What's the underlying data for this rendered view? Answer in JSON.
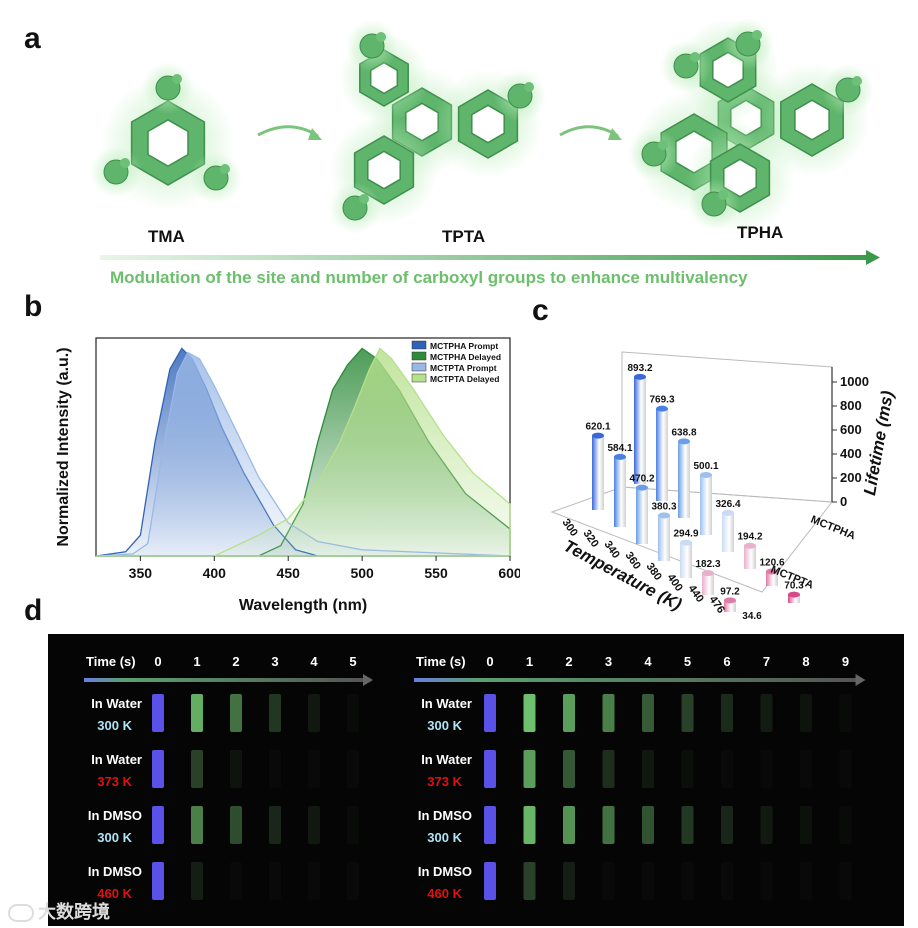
{
  "panels": {
    "a": "a",
    "b": "b",
    "c": "c",
    "d": "d"
  },
  "panel_a": {
    "molecules": [
      "TMA",
      "TPTA",
      "TPHA"
    ],
    "banner": "Modulation of the site and number of carboxyl groups to enhance multivalency",
    "colors": {
      "molecule": "#5bb36a",
      "glow": "#a8e6a8",
      "arrow": "#4caf50"
    }
  },
  "chart_data": [
    {
      "type": "area",
      "xlabel": "Wavelength (nm)",
      "ylabel": "Normalized Intensity (a.u.)",
      "xlim": [
        320,
        600
      ],
      "ylim": [
        0,
        1.05
      ],
      "xticks": [
        "350",
        "400",
        "450",
        "500",
        "550",
        "600"
      ],
      "legend_position": "top-right",
      "series": [
        {
          "name": "MCTPHA  Prompt",
          "color": "#2f63b8",
          "peak": 378,
          "points": [
            [
              320,
              0
            ],
            [
              340,
              0.02
            ],
            [
              350,
              0.1
            ],
            [
              360,
              0.55
            ],
            [
              370,
              0.9
            ],
            [
              378,
              1.0
            ],
            [
              385,
              0.95
            ],
            [
              395,
              0.8
            ],
            [
              405,
              0.62
            ],
            [
              420,
              0.4
            ],
            [
              440,
              0.15
            ],
            [
              455,
              0.03
            ],
            [
              470,
              0
            ],
            [
              600,
              0
            ]
          ]
        },
        {
          "name": "MCTPHA  Delayed",
          "color": "#2e8b3a",
          "peak": 500,
          "points": [
            [
              320,
              0
            ],
            [
              430,
              0
            ],
            [
              445,
              0.05
            ],
            [
              460,
              0.25
            ],
            [
              470,
              0.55
            ],
            [
              480,
              0.8
            ],
            [
              490,
              0.92
            ],
            [
              500,
              1.0
            ],
            [
              510,
              0.95
            ],
            [
              525,
              0.8
            ],
            [
              545,
              0.55
            ],
            [
              570,
              0.3
            ],
            [
              600,
              0.13
            ]
          ]
        },
        {
          "name": "MCTPTA  Prompt",
          "color": "#9ab8e6",
          "peak": 382,
          "points": [
            [
              320,
              0
            ],
            [
              345,
              0.01
            ],
            [
              355,
              0.06
            ],
            [
              365,
              0.5
            ],
            [
              375,
              0.88
            ],
            [
              382,
              0.98
            ],
            [
              390,
              0.95
            ],
            [
              400,
              0.82
            ],
            [
              415,
              0.6
            ],
            [
              430,
              0.38
            ],
            [
              450,
              0.16
            ],
            [
              470,
              0.07
            ],
            [
              500,
              0.03
            ],
            [
              600,
              0
            ]
          ]
        },
        {
          "name": "MCTPTA  Delayed",
          "color": "#b6e08c",
          "peak": 512,
          "points": [
            [
              320,
              0
            ],
            [
              400,
              0
            ],
            [
              430,
              0.1
            ],
            [
              450,
              0.18
            ],
            [
              470,
              0.35
            ],
            [
              485,
              0.55
            ],
            [
              495,
              0.72
            ],
            [
              505,
              0.9
            ],
            [
              512,
              1.0
            ],
            [
              520,
              0.95
            ],
            [
              535,
              0.8
            ],
            [
              555,
              0.58
            ],
            [
              575,
              0.4
            ],
            [
              600,
              0.25
            ]
          ]
        }
      ]
    },
    {
      "type": "bar",
      "xlabel": "Temperature (K)",
      "zlabel": "Lifetime (ms)",
      "zlim": [
        0,
        1000
      ],
      "zticks": [
        "1000",
        "800",
        "600",
        "400",
        "200",
        "0"
      ],
      "categories": [
        "300",
        "320",
        "340",
        "360",
        "380",
        "400",
        "440",
        "476"
      ],
      "series": [
        {
          "name": "MCTPHA",
          "values": [
            893.2,
            769.3,
            638.8,
            500.1,
            326.4,
            194.2,
            120.6,
            70.3
          ]
        },
        {
          "name": "MCTPTA",
          "values": [
            620.1,
            584.1,
            470.2,
            380.3,
            294.9,
            182.3,
            97.2,
            34.6
          ]
        }
      ]
    }
  ],
  "panel_d": {
    "left": {
      "time_label": "Time (s)",
      "times": [
        "0",
        "1",
        "2",
        "3",
        "4",
        "5"
      ],
      "rows": [
        {
          "solvent": "In Water",
          "temp": "300 K",
          "temp_color": "#aee4f5",
          "vials": [
            1,
            0.9,
            0.7,
            0.45,
            0.25,
            0.1
          ]
        },
        {
          "solvent": "In Water",
          "temp": "373 K",
          "temp_color": "#e01010",
          "vials": [
            1,
            0.5,
            0.2,
            0,
            0,
            0
          ]
        },
        {
          "solvent": "In DMSO",
          "temp": "300 K",
          "temp_color": "#aee4f5",
          "vials": [
            1,
            0.75,
            0.55,
            0.35,
            0.25,
            0.1
          ]
        },
        {
          "solvent": "In DMSO",
          "temp": "460 K",
          "temp_color": "#e01010",
          "vials": [
            1,
            0.3,
            0,
            0,
            0,
            0
          ]
        }
      ]
    },
    "right": {
      "time_label": "Time (s)",
      "times": [
        "0",
        "1",
        "2",
        "3",
        "4",
        "5",
        "6",
        "7",
        "8",
        "9"
      ],
      "rows": [
        {
          "solvent": "In Water",
          "temp": "300 K",
          "temp_color": "#aee4f5",
          "vials": [
            1,
            0.95,
            0.85,
            0.75,
            0.62,
            0.5,
            0.38,
            0.28,
            0.2,
            0.12
          ]
        },
        {
          "solvent": "In Water",
          "temp": "373 K",
          "temp_color": "#e01010",
          "vials": [
            1,
            0.85,
            0.6,
            0.4,
            0.25,
            0.15,
            0,
            0,
            0,
            0
          ]
        },
        {
          "solvent": "In DMSO",
          "temp": "300 K",
          "temp_color": "#aee4f5",
          "vials": [
            1,
            0.92,
            0.82,
            0.7,
            0.58,
            0.46,
            0.35,
            0.26,
            0.18,
            0.1
          ]
        },
        {
          "solvent": "In DMSO",
          "temp": "460 K",
          "temp_color": "#e01010",
          "vials": [
            1,
            0.5,
            0.3,
            0,
            0,
            0,
            0,
            0,
            0,
            0
          ]
        }
      ]
    }
  },
  "watermark": "大数跨境"
}
